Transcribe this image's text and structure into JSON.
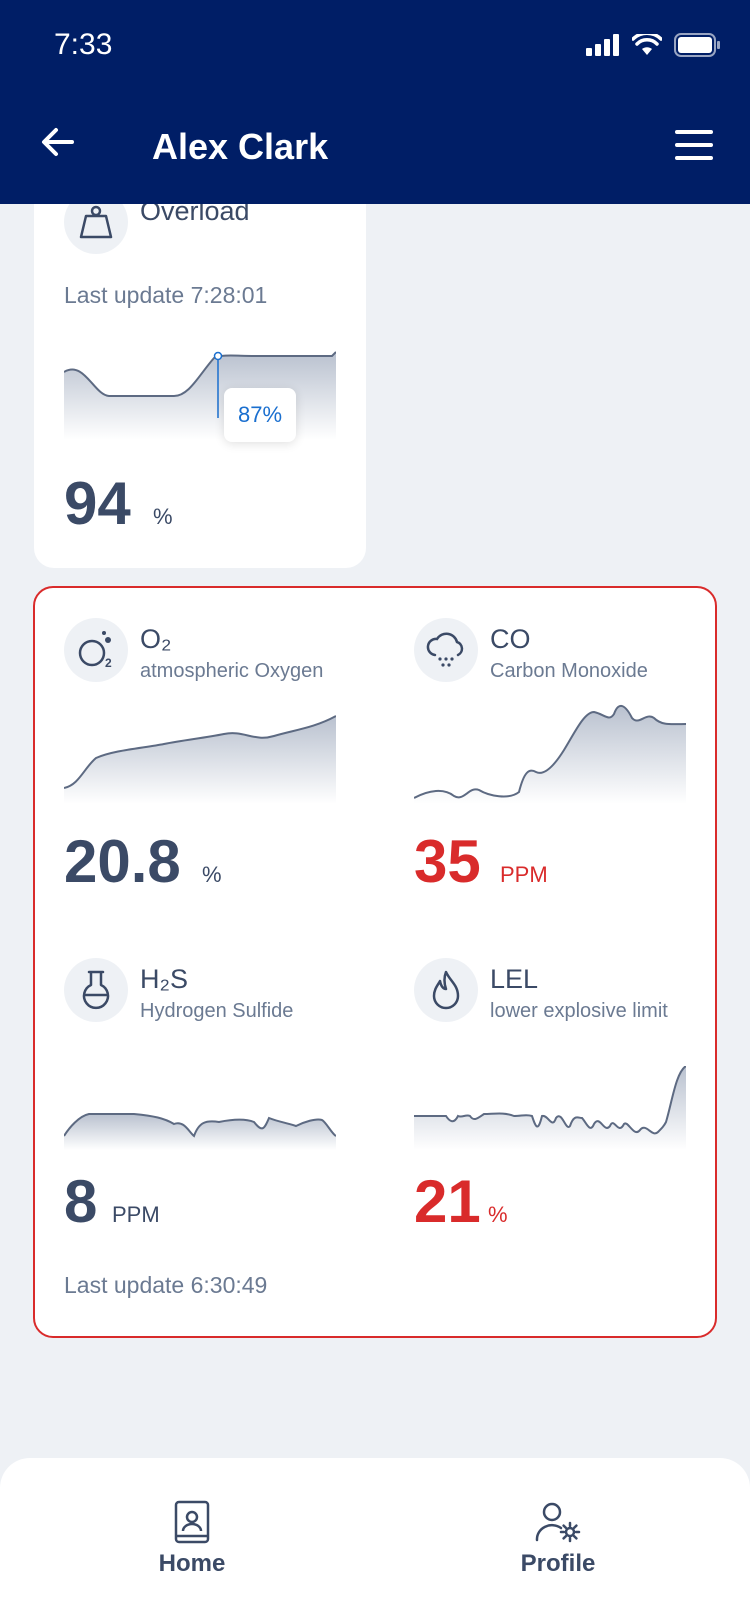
{
  "status_bar": {
    "time": "7:33"
  },
  "header": {
    "title": "Alex Clark"
  },
  "overload": {
    "name": "Overload",
    "last_update": "Last update 7:28:01",
    "tooltip": "87%",
    "value": "94",
    "unit": "%"
  },
  "gas": {
    "o2": {
      "name": "O₂",
      "sub": "atmospheric Oxygen",
      "value": "20.8",
      "unit": "%"
    },
    "co": {
      "name": "CO",
      "sub": "Carbon Monoxide",
      "value": "35",
      "unit": "PPM"
    },
    "h2s": {
      "name": "H₂S",
      "sub": "Hydrogen Sulfide",
      "value": "8",
      "unit": "PPM"
    },
    "lel": {
      "name": "LEL",
      "sub": "lower explosive limit",
      "value": "21",
      "unit": "%"
    },
    "last_update": "Last update 6:30:49"
  },
  "nav": {
    "home": "Home",
    "profile": "Profile"
  },
  "colors": {
    "header": "#001e66",
    "alert": "#d92b2b",
    "accent": "#1a6fcf"
  }
}
